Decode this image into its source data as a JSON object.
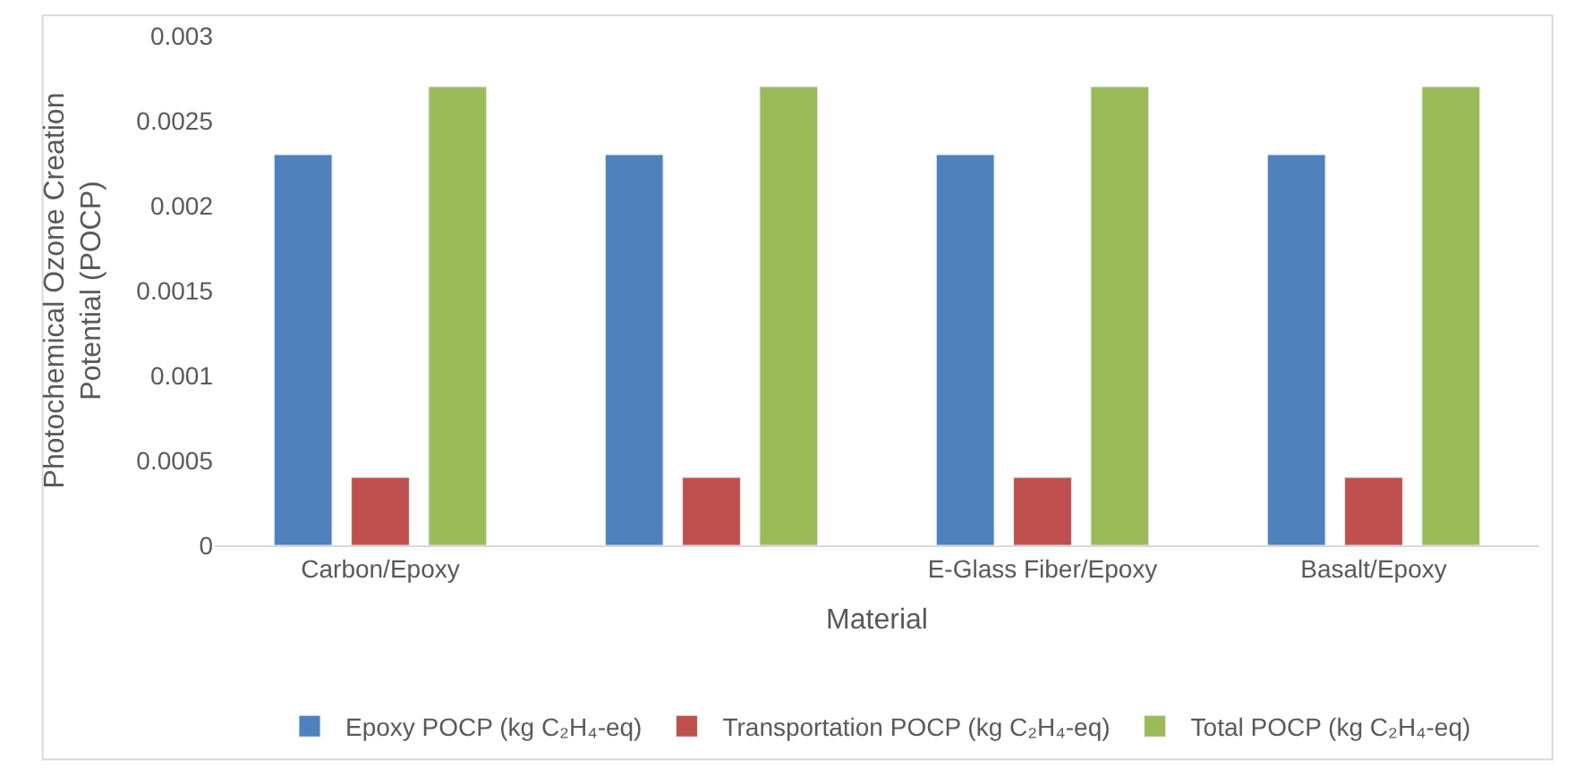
{
  "chart_data": {
    "type": "bar",
    "xlabel": "Material",
    "ylabel": "Photochemical Ozone Creation Potential (POCP)",
    "categories": [
      "Carbon/Epoxy",
      null,
      "E-Glass Fiber/Epoxy",
      "Basalt/Epoxy"
    ],
    "series": [
      {
        "name": "Epoxy POCP (kg C₂H₄-eq)",
        "color": "#4f81bd",
        "values": [
          0.0023,
          0.0023,
          0.0023,
          0.0023
        ]
      },
      {
        "name": "Transportation POCP (kg C₂H₄-eq)",
        "color": "#c0504d",
        "values": [
          0.0004,
          0.0004,
          0.0004,
          0.0004
        ]
      },
      {
        "name": "Total POCP (kg C₂H₄-eq)",
        "color": "#9bbb59",
        "values": [
          0.0027,
          0.0027,
          0.0027,
          0.0027
        ]
      }
    ],
    "ylim": [
      0,
      0.003
    ],
    "yticks": [
      0,
      0.0005,
      0.001,
      0.0015,
      0.002,
      0.0025,
      0.003
    ],
    "legend": "bottom"
  }
}
